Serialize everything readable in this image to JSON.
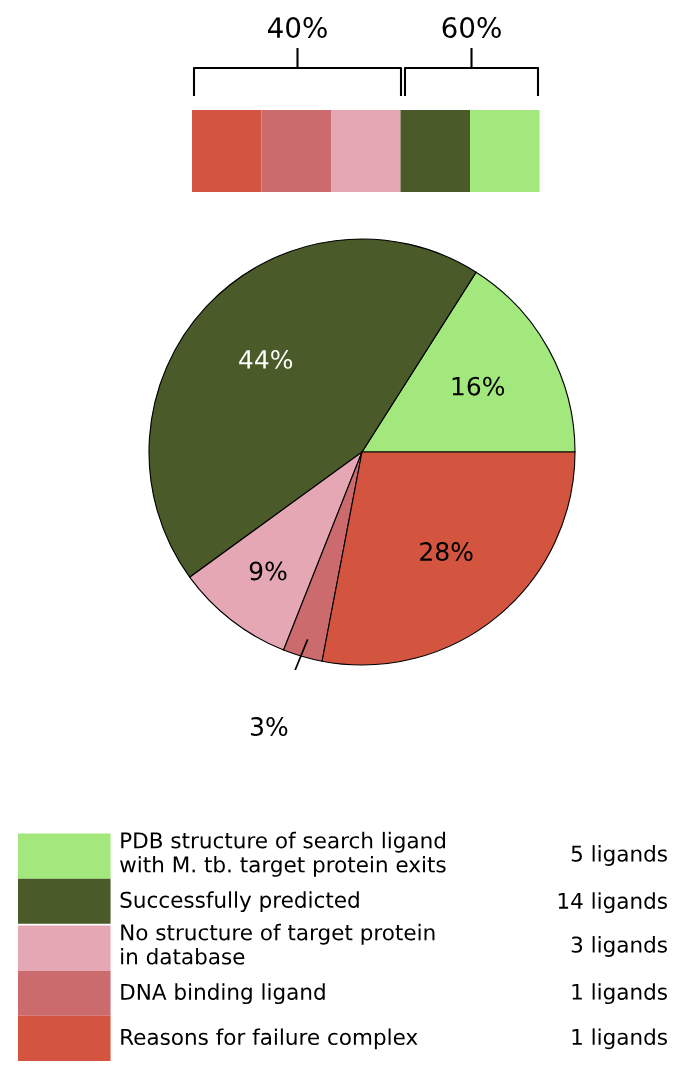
{
  "chart_data": {
    "type": "pie",
    "categories": [
      "PDB structure of search ligand\nwith M. tb. target protein exits",
      "Successfully predicted",
      "No structure of target protein\nin database",
      "DNA binding ligand",
      "Reasons for failure complex"
    ],
    "values": [
      16,
      44,
      9,
      3,
      28
    ],
    "colors": [
      "#a2e87c",
      "#4a5a28",
      "#e6a7b4",
      "#cc6b6e",
      "#d4553f"
    ],
    "value_labels": [
      "16%",
      "44%",
      "9%",
      "3%",
      "28%"
    ],
    "legend": "bottom",
    "annotations": [
      "40%",
      "60%",
      "5 ligands",
      "14 ligands",
      "3 ligands",
      "1 ligands",
      "1 ligands"
    ]
  }
}
